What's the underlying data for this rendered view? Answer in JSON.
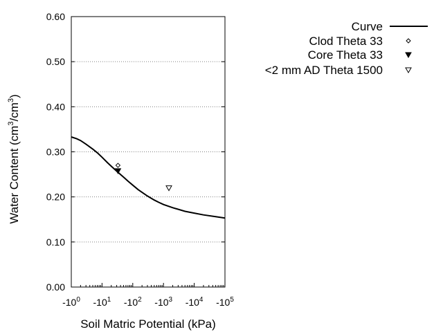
{
  "chart_data": {
    "type": "line",
    "title": "",
    "xlabel": "Soil Matric Potential (kPa)",
    "ylabel": "Water Content (cm3/cm3)",
    "ylabel_parts": [
      "Water Content (cm",
      "3",
      "/cm",
      "3",
      ")"
    ],
    "x_scale": "log",
    "xlim": [
      1,
      100000
    ],
    "ylim": [
      0,
      0.6
    ],
    "x_ticks": [
      {
        "value": 1,
        "base": "-10",
        "exp": "0"
      },
      {
        "value": 10,
        "base": "-10",
        "exp": "1"
      },
      {
        "value": 100,
        "base": "-10",
        "exp": "2"
      },
      {
        "value": 1000,
        "base": "-10",
        "exp": "3"
      },
      {
        "value": 10000,
        "base": "-10",
        "exp": "4"
      },
      {
        "value": 100000,
        "base": "-10",
        "exp": "5"
      }
    ],
    "y_ticks": [
      {
        "value": 0.0,
        "label": "0.00"
      },
      {
        "value": 0.1,
        "label": "0.10"
      },
      {
        "value": 0.2,
        "label": "0.20"
      },
      {
        "value": 0.3,
        "label": "0.30"
      },
      {
        "value": 0.4,
        "label": "0.40"
      },
      {
        "value": 0.5,
        "label": "0.50"
      },
      {
        "value": 0.6,
        "label": "0.60"
      }
    ],
    "grid": "horizontal dotted",
    "legend_position": "right",
    "series": [
      {
        "name": "Curve",
        "kind": "line",
        "x": [
          1,
          1.5,
          2,
          3,
          5,
          7,
          10,
          15,
          20,
          30,
          50,
          70,
          100,
          150,
          200,
          300,
          500,
          700,
          1000,
          2000,
          5000,
          10000,
          20000,
          50000,
          100000
        ],
        "y": [
          0.333,
          0.329,
          0.325,
          0.317,
          0.306,
          0.298,
          0.288,
          0.276,
          0.268,
          0.257,
          0.244,
          0.235,
          0.226,
          0.216,
          0.21,
          0.202,
          0.193,
          0.188,
          0.183,
          0.176,
          0.168,
          0.164,
          0.16,
          0.156,
          0.153
        ]
      },
      {
        "name": "Clod Theta 33",
        "kind": "scatter",
        "marker": "diamond-open",
        "x": [
          33
        ],
        "y": [
          0.27
        ]
      },
      {
        "name": "Core Theta 33",
        "kind": "scatter",
        "marker": "triangle-down-filled",
        "x": [
          33
        ],
        "y": [
          0.258
        ]
      },
      {
        "name": "<2 mm AD Theta 1500",
        "kind": "scatter",
        "marker": "triangle-down-open",
        "x": [
          1500
        ],
        "y": [
          0.22
        ]
      }
    ]
  }
}
